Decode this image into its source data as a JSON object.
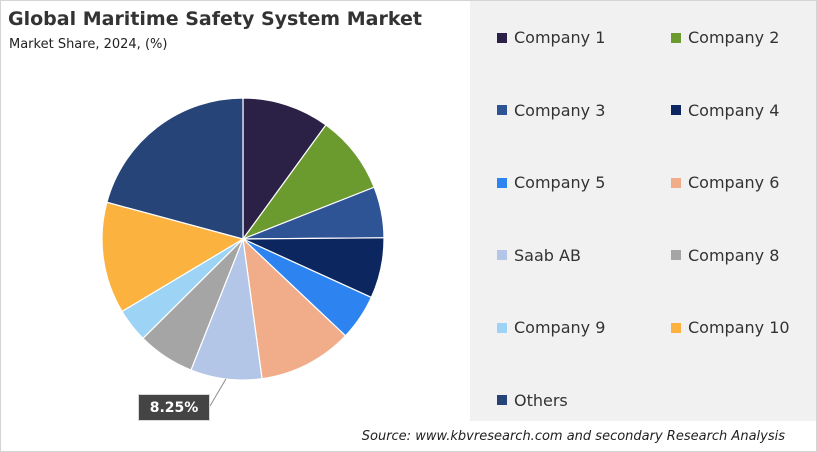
{
  "chart_data": {
    "type": "pie",
    "title": "Global Maritime Safety System Market",
    "subtitle": "Market Share, 2024, (%)",
    "categories": [
      "Company 1",
      "Company 2",
      "Company 3",
      "Company 4",
      "Company 5",
      "Company 6",
      "Saab AB",
      "Company 8",
      "Company 9",
      "Company 10",
      "Others"
    ],
    "values": [
      10.1,
      9.1,
      5.9,
      7.0,
      5.3,
      10.9,
      8.25,
      6.6,
      3.9,
      12.9,
      21.0
    ],
    "colors": [
      "#2b2147",
      "#6b9a2e",
      "#2f5496",
      "#0c2660",
      "#2d84f0",
      "#f1ad89",
      "#b4c6e7",
      "#a5a5a5",
      "#9dd3f5",
      "#fbb23f",
      "#264478"
    ],
    "start_angle_deg": 0,
    "direction": "clockwise",
    "legend_position": "right",
    "data_labels": [
      {
        "category": "Saab AB",
        "text": "8.25%"
      }
    ]
  },
  "source": "Source: www.kbvresearch.com and secondary Research Analysis"
}
